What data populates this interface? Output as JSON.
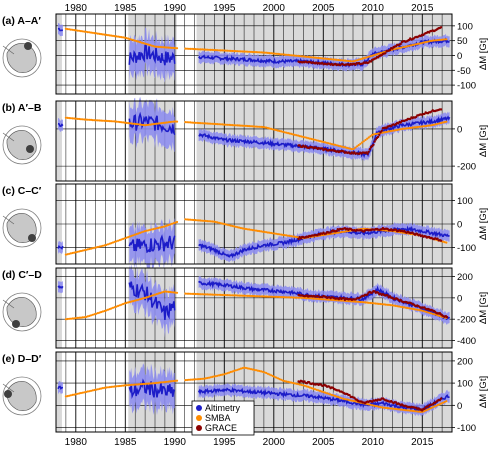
{
  "figure": {
    "x_ticks": [
      "1980",
      "1985",
      "1990",
      "1995",
      "2000",
      "2005",
      "2010",
      "2015"
    ],
    "y_axis_label": "ΔM [Gt]",
    "legend": [
      {
        "label": "Altimetry",
        "color": "#1c1cc8"
      },
      {
        "label": "SMBA",
        "color": "#ff8c00"
      },
      {
        "label": "GRACE",
        "color": "#8b0000"
      }
    ],
    "colors": {
      "altimetry": "#1c1cc8",
      "altimetry_band": "#8a8af0",
      "smba": "#ff8c00",
      "grace": "#8b0000",
      "data_gap_shading": "#d9d9d9"
    }
  },
  "chart_data": [
    {
      "type": "line",
      "panel_label": "(a) A–A′",
      "xlim": [
        1978,
        2018
      ],
      "ylim": [
        -130,
        140
      ],
      "yticks": [
        -100,
        -50,
        0,
        50,
        100
      ],
      "series": [
        {
          "name": "Altimetry",
          "x": [
            1978.3,
            1985.5,
            1987,
            1989,
            1992.5,
            1995,
            1998,
            2000,
            2003,
            2005,
            2007,
            2009,
            2010,
            2012,
            2015,
            2017.5
          ],
          "y": [
            90,
            -10,
            10,
            -10,
            -5,
            -10,
            -15,
            -20,
            -20,
            -25,
            -30,
            -30,
            5,
            20,
            45,
            50
          ]
        },
        {
          "name": "SMBA",
          "x": [
            1979,
            1981,
            1983,
            1985,
            1988,
            1990,
            1993,
            1996,
            1999,
            2002,
            2005,
            2008,
            2010,
            2012,
            2014,
            2016,
            2017.5
          ],
          "y": [
            90,
            80,
            70,
            60,
            30,
            25,
            20,
            15,
            10,
            0,
            -10,
            -20,
            0,
            20,
            35,
            50,
            55
          ]
        },
        {
          "name": "GRACE",
          "x": [
            2002.5,
            2004,
            2006,
            2008,
            2009.5,
            2011,
            2013,
            2015,
            2017
          ],
          "y": [
            -20,
            -25,
            -30,
            -30,
            -25,
            5,
            45,
            70,
            95
          ]
        }
      ]
    },
    {
      "type": "line",
      "panel_label": "(b) A′–B",
      "xlim": [
        1978,
        2018
      ],
      "ylim": [
        -280,
        150
      ],
      "yticks": [
        -200,
        0
      ],
      "series": [
        {
          "name": "Altimetry",
          "x": [
            1978.3,
            1985.5,
            1987,
            1989,
            1992.5,
            1995,
            1998,
            2001,
            2004,
            2007,
            2009.5,
            2010.5,
            2013,
            2016,
            2017.5
          ],
          "y": [
            20,
            30,
            40,
            20,
            -30,
            -60,
            -70,
            -85,
            -100,
            -120,
            -140,
            -15,
            20,
            40,
            55
          ]
        },
        {
          "name": "SMBA",
          "x": [
            1979,
            1981,
            1984,
            1987,
            1990,
            1993,
            1996,
            1999,
            2002,
            2005,
            2008,
            2010,
            2013,
            2016,
            2017.5
          ],
          "y": [
            60,
            50,
            40,
            20,
            40,
            30,
            20,
            10,
            -30,
            -70,
            -110,
            -30,
            0,
            20,
            40
          ]
        },
        {
          "name": "GRACE",
          "x": [
            2002.5,
            2005,
            2008,
            2009.5,
            2011,
            2013,
            2015,
            2017
          ],
          "y": [
            -90,
            -110,
            -130,
            -130,
            0,
            40,
            80,
            110
          ]
        }
      ]
    },
    {
      "type": "line",
      "panel_label": "(c) C–C′",
      "xlim": [
        1978,
        2018
      ],
      "ylim": [
        -170,
        170
      ],
      "yticks": [
        -100,
        0,
        100
      ],
      "series": [
        {
          "name": "Altimetry",
          "x": [
            1978.3,
            1985.5,
            1987,
            1989.5,
            1992.5,
            1994,
            1995.5,
            1997,
            1999,
            2001,
            2003,
            2005,
            2007,
            2009,
            2011,
            2013,
            2015,
            2017.5
          ],
          "y": [
            -100,
            -100,
            -90,
            -80,
            -90,
            -110,
            -140,
            -110,
            -90,
            -80,
            -60,
            -40,
            -30,
            -40,
            -30,
            -20,
            -30,
            -50
          ]
        },
        {
          "name": "SMBA",
          "x": [
            1979,
            1981,
            1983,
            1985,
            1987,
            1989,
            1991,
            1994,
            1997,
            2000,
            2003,
            2006,
            2009,
            2012,
            2015,
            2017.5
          ],
          "y": [
            -130,
            -110,
            -90,
            -60,
            -30,
            -10,
            20,
            10,
            -20,
            -40,
            -60,
            -40,
            -20,
            -30,
            -50,
            -80
          ]
        },
        {
          "name": "GRACE",
          "x": [
            2002.5,
            2005,
            2007,
            2009,
            2011,
            2013,
            2015,
            2017
          ],
          "y": [
            -60,
            -40,
            -20,
            -30,
            -20,
            -30,
            -50,
            -70
          ]
        }
      ]
    },
    {
      "type": "line",
      "panel_label": "(d) C′–D",
      "xlim": [
        1978,
        2018
      ],
      "ylim": [
        -470,
        280
      ],
      "yticks": [
        -400,
        -200,
        0,
        200
      ],
      "series": [
        {
          "name": "Altimetry",
          "x": [
            1978.3,
            1985.5,
            1987,
            1989,
            1992.5,
            1995,
            1998,
            2001,
            2004,
            2007,
            2009,
            2010.5,
            2012,
            2015,
            2017.5
          ],
          "y": [
            100,
            100,
            50,
            -150,
            140,
            120,
            80,
            60,
            20,
            0,
            -10,
            80,
            0,
            -100,
            -190
          ]
        },
        {
          "name": "SMBA",
          "x": [
            1979,
            1981,
            1983,
            1985,
            1987,
            1989,
            1991,
            1994,
            1997,
            2000,
            2003,
            2006,
            2009,
            2012,
            2015,
            2017.5
          ],
          "y": [
            -200,
            -180,
            -120,
            -50,
            0,
            60,
            40,
            30,
            20,
            10,
            0,
            -20,
            -40,
            -70,
            -120,
            -190
          ]
        },
        {
          "name": "GRACE",
          "x": [
            2002.5,
            2005,
            2008,
            2010,
            2012,
            2014,
            2016,
            2017.5
          ],
          "y": [
            20,
            10,
            -20,
            60,
            0,
            -60,
            -120,
            -180
          ]
        }
      ]
    },
    {
      "type": "line",
      "panel_label": "(e) D–D′",
      "xlim": [
        1978,
        2018
      ],
      "ylim": [
        -120,
        240
      ],
      "yticks": [
        -100,
        0,
        100,
        200
      ],
      "series": [
        {
          "name": "Altimetry",
          "x": [
            1978.3,
            1985.5,
            1987,
            1989,
            1992.5,
            1995,
            1998,
            2001,
            2004,
            2007,
            2009.5,
            2011,
            2013,
            2015,
            2017.5
          ],
          "y": [
            80,
            60,
            80,
            60,
            60,
            70,
            60,
            50,
            40,
            20,
            0,
            10,
            -10,
            -20,
            40
          ]
        },
        {
          "name": "SMBA",
          "x": [
            1979,
            1981,
            1983,
            1985,
            1988,
            1990,
            1993,
            1995,
            1997,
            1999,
            2001,
            2003,
            2005,
            2007,
            2009,
            2011,
            2013,
            2015,
            2017.5
          ],
          "y": [
            40,
            60,
            80,
            90,
            100,
            110,
            120,
            140,
            170,
            150,
            110,
            90,
            60,
            30,
            10,
            -10,
            -20,
            -30,
            20
          ]
        },
        {
          "name": "GRACE",
          "x": [
            2002.5,
            2005,
            2007,
            2009,
            2011,
            2013,
            2015,
            2017
          ],
          "y": [
            110,
            90,
            60,
            10,
            30,
            0,
            -20,
            30
          ]
        }
      ]
    }
  ]
}
